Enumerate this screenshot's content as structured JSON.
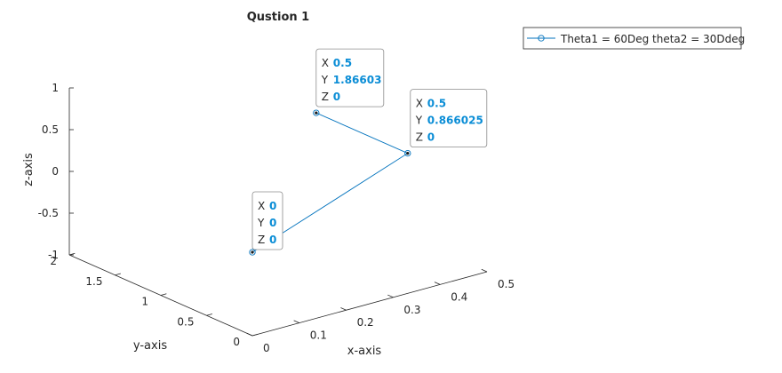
{
  "chart_data": {
    "type": "line3d",
    "title": "Qustion 1",
    "xlabel": "x-axis",
    "ylabel": "y-axis",
    "zlabel": "z-axis",
    "xlim": [
      0,
      0.5
    ],
    "ylim": [
      0,
      2
    ],
    "zlim": [
      -1,
      1
    ],
    "x_ticks": [
      "0",
      "0.1",
      "0.2",
      "0.3",
      "0.4",
      "0.5"
    ],
    "y_ticks": [
      "0",
      "0.5",
      "1",
      "1.5",
      "2"
    ],
    "z_ticks": [
      "-1",
      "-0.5",
      "0",
      "0.5",
      "1"
    ],
    "grid": false,
    "legend_position": "top-right",
    "series": [
      {
        "name": "Theta1 = 60Deg theta2 = 30Ddeg",
        "color": "#0072BD",
        "marker": "circle",
        "points": [
          {
            "x": 0,
            "y": 0,
            "z": 0
          },
          {
            "x": 0.5,
            "y": 0.866025,
            "z": 0
          },
          {
            "x": 0.5,
            "y": 1.86603,
            "z": 0
          }
        ]
      }
    ],
    "datatips": [
      {
        "x": "0",
        "y": "0",
        "z": "0"
      },
      {
        "x": "0.5",
        "y": "0.866025",
        "z": "0"
      },
      {
        "x": "0.5",
        "y": "1.86603",
        "z": "0"
      }
    ]
  }
}
